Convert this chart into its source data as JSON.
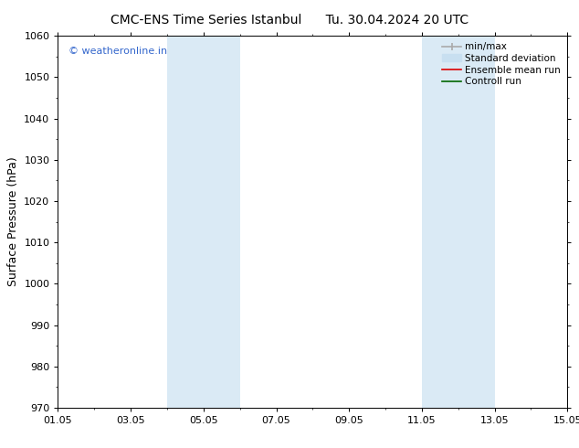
{
  "title_left": "CMC-ENS Time Series Istanbul",
  "title_right": "Tu. 30.04.2024 20 UTC",
  "ylabel": "Surface Pressure (hPa)",
  "ylim": [
    970,
    1060
  ],
  "yticks": [
    970,
    980,
    990,
    1000,
    1010,
    1020,
    1030,
    1040,
    1050,
    1060
  ],
  "xtick_labels": [
    "01.05",
    "03.05",
    "05.05",
    "07.05",
    "09.05",
    "11.05",
    "13.05",
    "15.05"
  ],
  "xtick_positions": [
    0,
    2,
    4,
    6,
    8,
    10,
    12,
    14
  ],
  "xlim": [
    0,
    14
  ],
  "shaded_regions": [
    {
      "x_start": 3.0,
      "x_end": 5.0
    },
    {
      "x_start": 10.0,
      "x_end": 12.0
    }
  ],
  "shaded_color": "#daeaf5",
  "background_color": "#ffffff",
  "watermark": "© weatheronline.in",
  "watermark_color": "#3366cc",
  "legend_items": [
    {
      "label": "min/max",
      "color": "#aaaaaa",
      "lw": 1.2
    },
    {
      "label": "Standard deviation",
      "color": "#c8dff0",
      "lw": 7
    },
    {
      "label": "Ensemble mean run",
      "color": "#dd0000",
      "lw": 1.2
    },
    {
      "label": "Controll run",
      "color": "#006600",
      "lw": 1.2
    }
  ],
  "title_fontsize": 10,
  "tick_fontsize": 8,
  "ylabel_fontsize": 9,
  "legend_fontsize": 7.5
}
